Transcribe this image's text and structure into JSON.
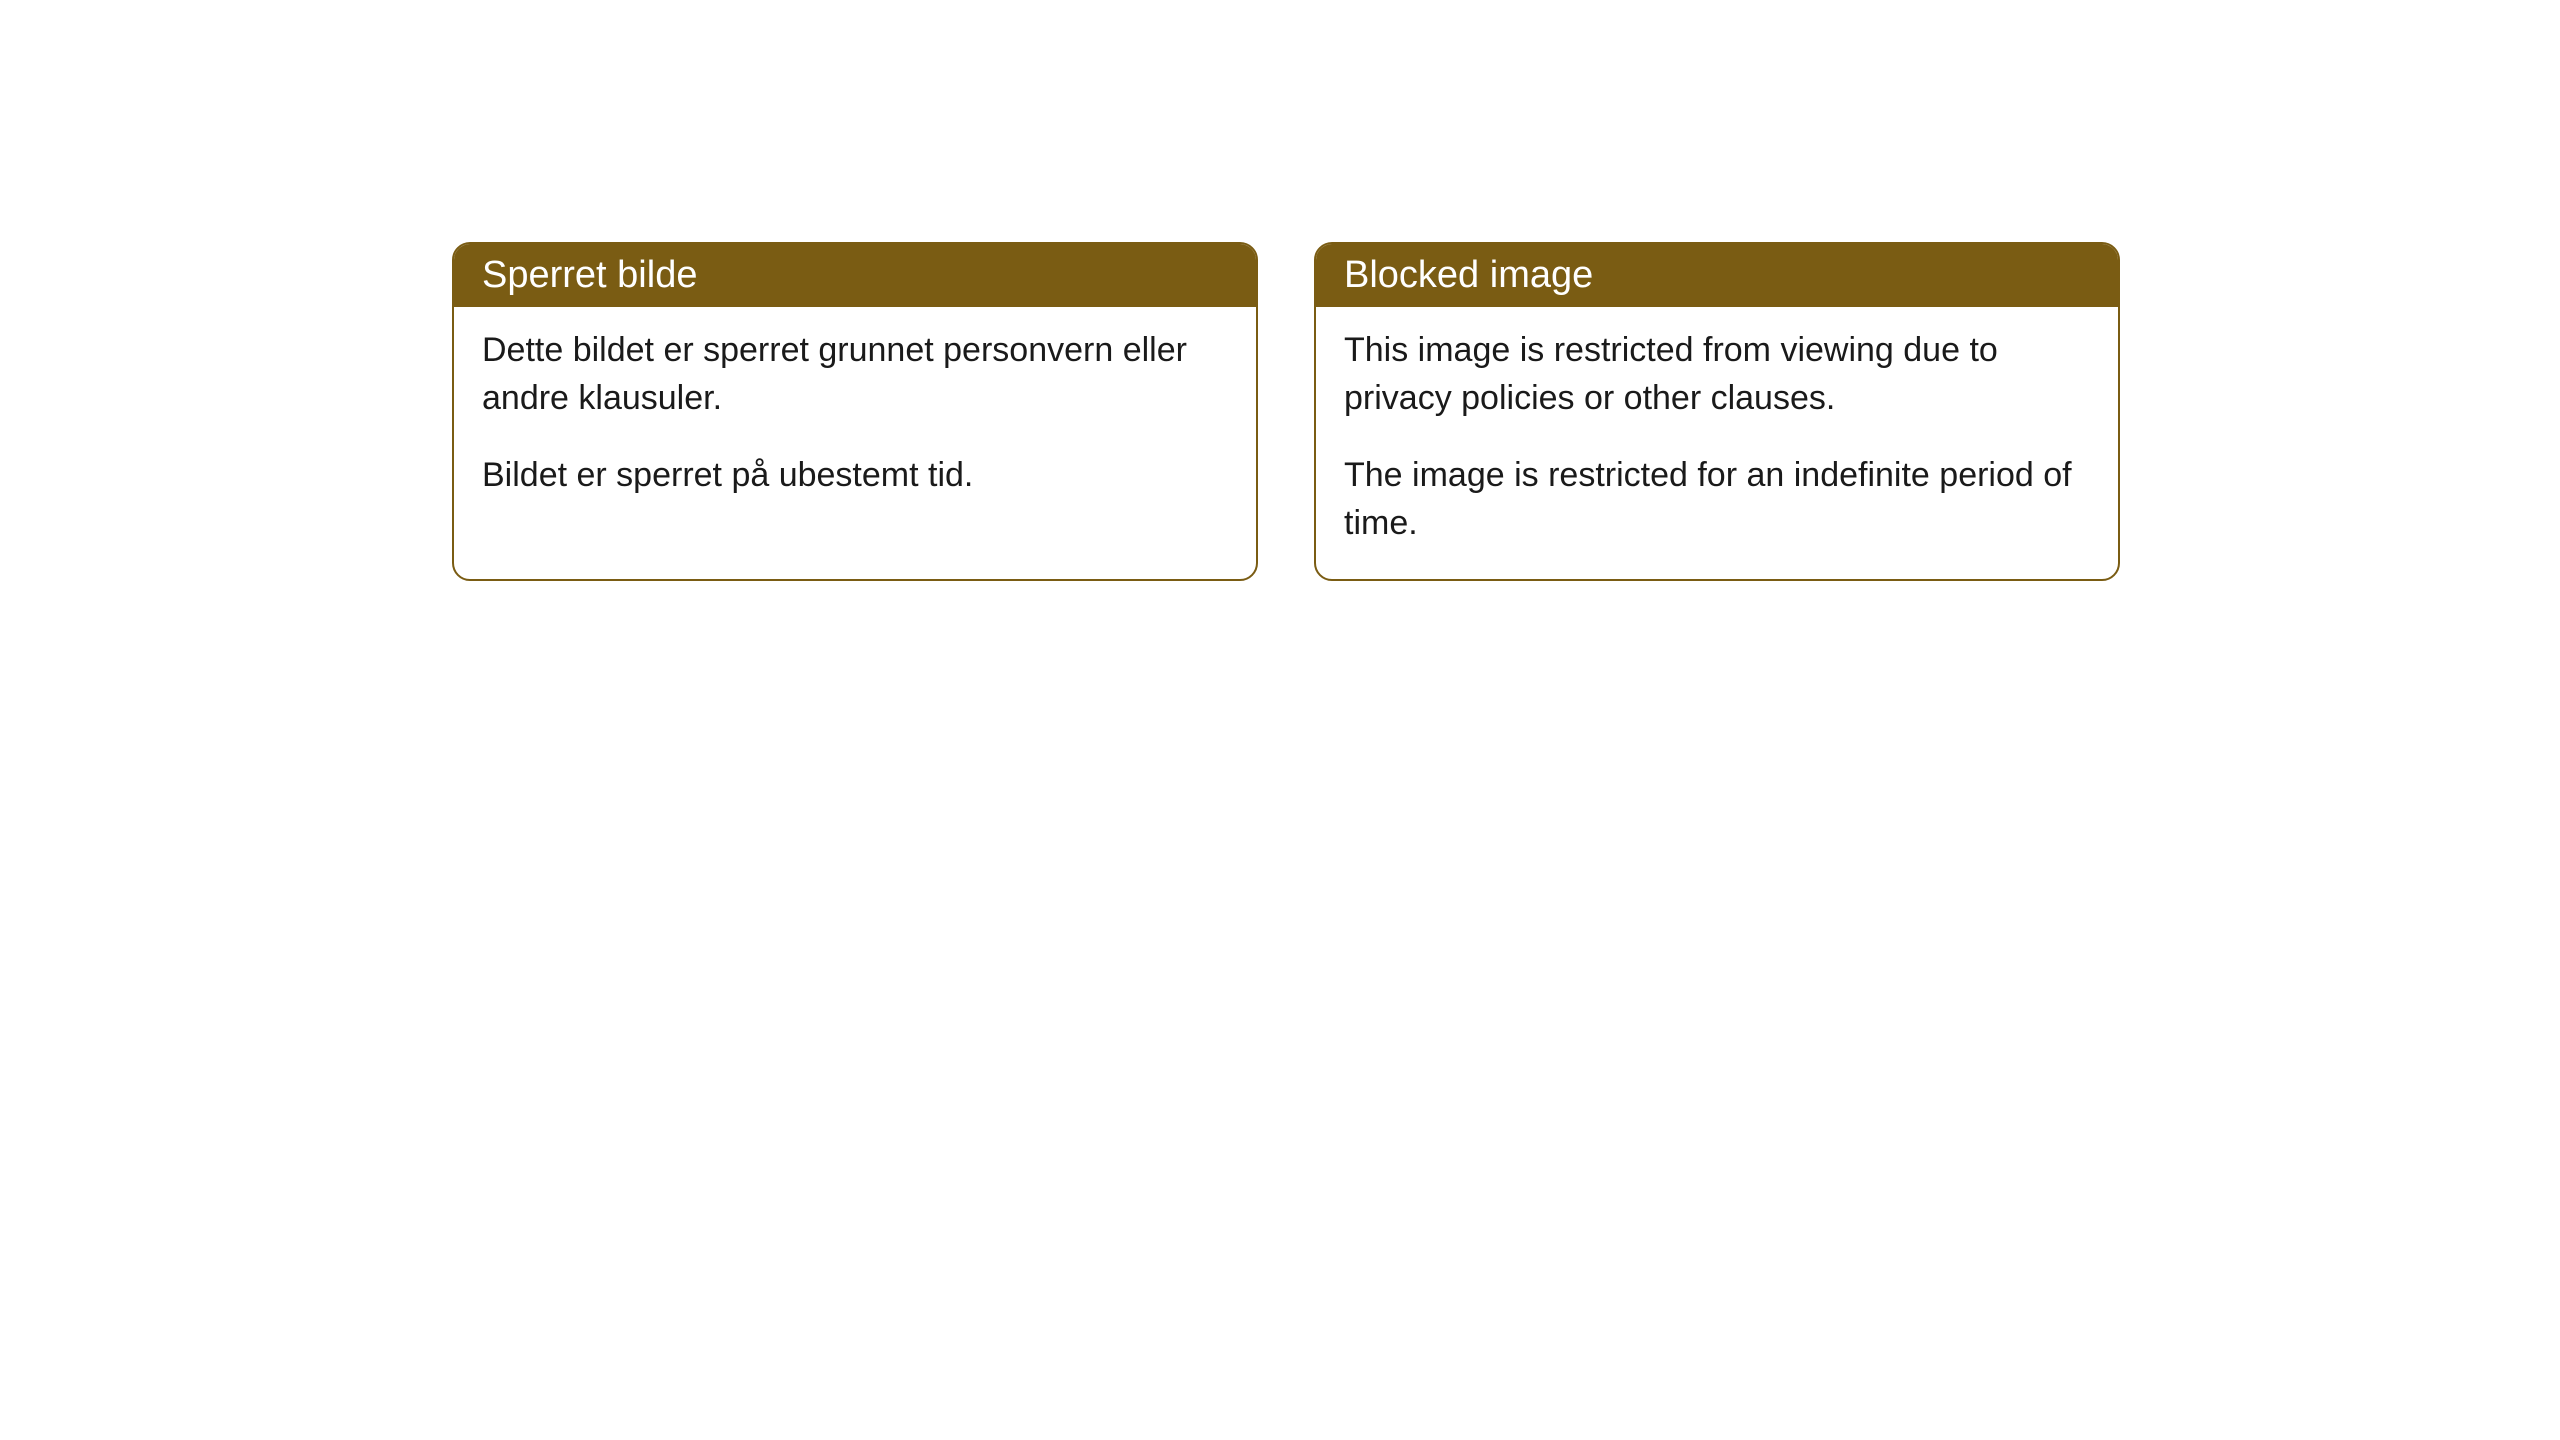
{
  "cards": [
    {
      "title": "Sperret bilde",
      "paragraph1": "Dette bildet er sperret grunnet personvern eller andre klausuler.",
      "paragraph2": "Bildet er sperret på ubestemt tid."
    },
    {
      "title": "Blocked image",
      "paragraph1": "This image is restricted from viewing due to privacy policies or other clauses.",
      "paragraph2": "The image is restricted for an indefinite period of time."
    }
  ],
  "styling": {
    "header_bg_color": "#7a5c13",
    "header_text_color": "#ffffff",
    "border_color": "#7a5c13",
    "body_bg_color": "#ffffff",
    "body_text_color": "#1a1a1a",
    "border_radius": 18,
    "title_fontsize": 38,
    "body_fontsize": 34
  }
}
